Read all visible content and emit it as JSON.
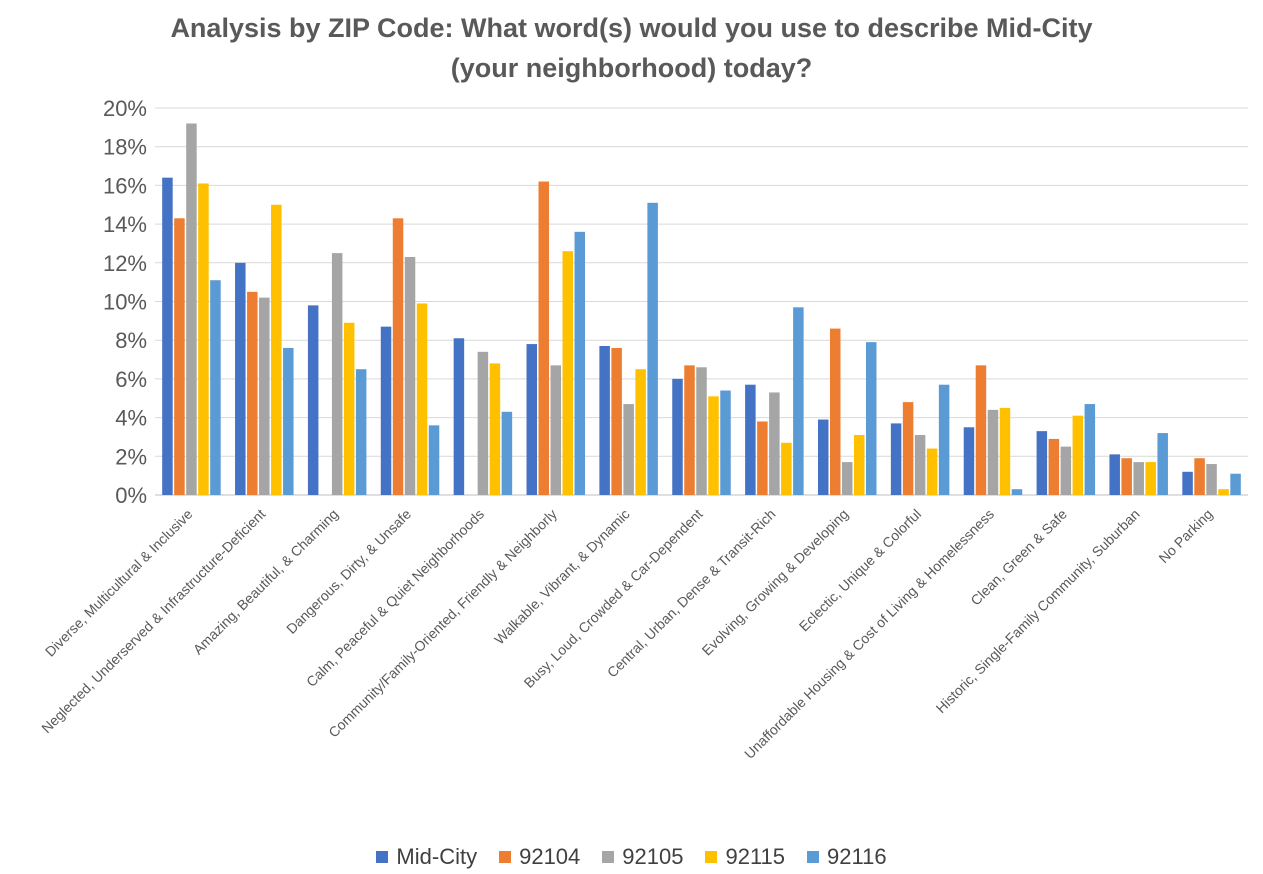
{
  "title": {
    "line1": "Analysis by ZIP Code: What word(s) would you use to describe Mid-City",
    "line2": "(your neighborhood) today?"
  },
  "colors": {
    "Mid-City": "#4472c4",
    "92104": "#ed7d31",
    "92105": "#a5a5a5",
    "92115": "#ffc000",
    "92116": "#5b9bd5"
  },
  "chart_data": {
    "type": "bar",
    "title": "Analysis by ZIP Code: What word(s) would you use to describe Mid-City (your neighborhood) today?",
    "xlabel": "",
    "ylabel": "",
    "ylim": [
      0,
      20
    ],
    "yticks": [
      "0%",
      "2%",
      "4%",
      "6%",
      "8%",
      "10%",
      "12%",
      "14%",
      "16%",
      "18%",
      "20%"
    ],
    "grid": true,
    "legend_position": "bottom",
    "categories": [
      "Diverse, Multicultural & Inclusive",
      "Neglected, Underserved & Infrastructure-Deficient",
      "Amazing, Beautiful, & Charming",
      "Dangerous, Dirty, & Unsafe",
      "Calm, Peaceful & Quiet Neighborhoods",
      "Community/Family-Oriented, Friendly & Neighborly",
      "Walkable, Vibrant, & Dynamic",
      "Busy, Loud, Crowded & Car-Dependent",
      "Central, Urban, Dense & Transit-Rich",
      "Evolving, Growing & Developing",
      "Eclectic, Unique & Colorful",
      "Unaffordable Housing & Cost of Living & Homelessness",
      "Clean, Green & Safe",
      "Historic, Single-Family Community, Suburban",
      "No Parking"
    ],
    "series": [
      {
        "name": "Mid-City",
        "values": [
          16.4,
          12.0,
          9.8,
          8.7,
          8.1,
          7.8,
          7.7,
          6.0,
          5.7,
          3.9,
          3.7,
          3.5,
          3.3,
          2.1,
          1.2
        ]
      },
      {
        "name": "92104",
        "values": [
          14.3,
          10.5,
          0.0,
          14.3,
          0.0,
          16.2,
          7.6,
          6.7,
          3.8,
          8.6,
          4.8,
          6.7,
          2.9,
          1.9,
          1.9
        ]
      },
      {
        "name": "92105",
        "values": [
          19.2,
          10.2,
          12.5,
          12.3,
          7.4,
          6.7,
          4.7,
          6.6,
          5.3,
          1.7,
          3.1,
          4.4,
          2.5,
          1.7,
          1.6
        ]
      },
      {
        "name": "92115",
        "values": [
          16.1,
          15.0,
          8.9,
          9.9,
          6.8,
          12.6,
          6.5,
          5.1,
          2.7,
          3.1,
          2.4,
          4.5,
          4.1,
          1.7,
          0.3
        ]
      },
      {
        "name": "92116",
        "values": [
          11.1,
          7.6,
          6.5,
          3.6,
          4.3,
          13.6,
          15.1,
          5.4,
          9.7,
          7.9,
          5.7,
          0.3,
          4.7,
          3.2,
          1.1
        ]
      }
    ]
  }
}
